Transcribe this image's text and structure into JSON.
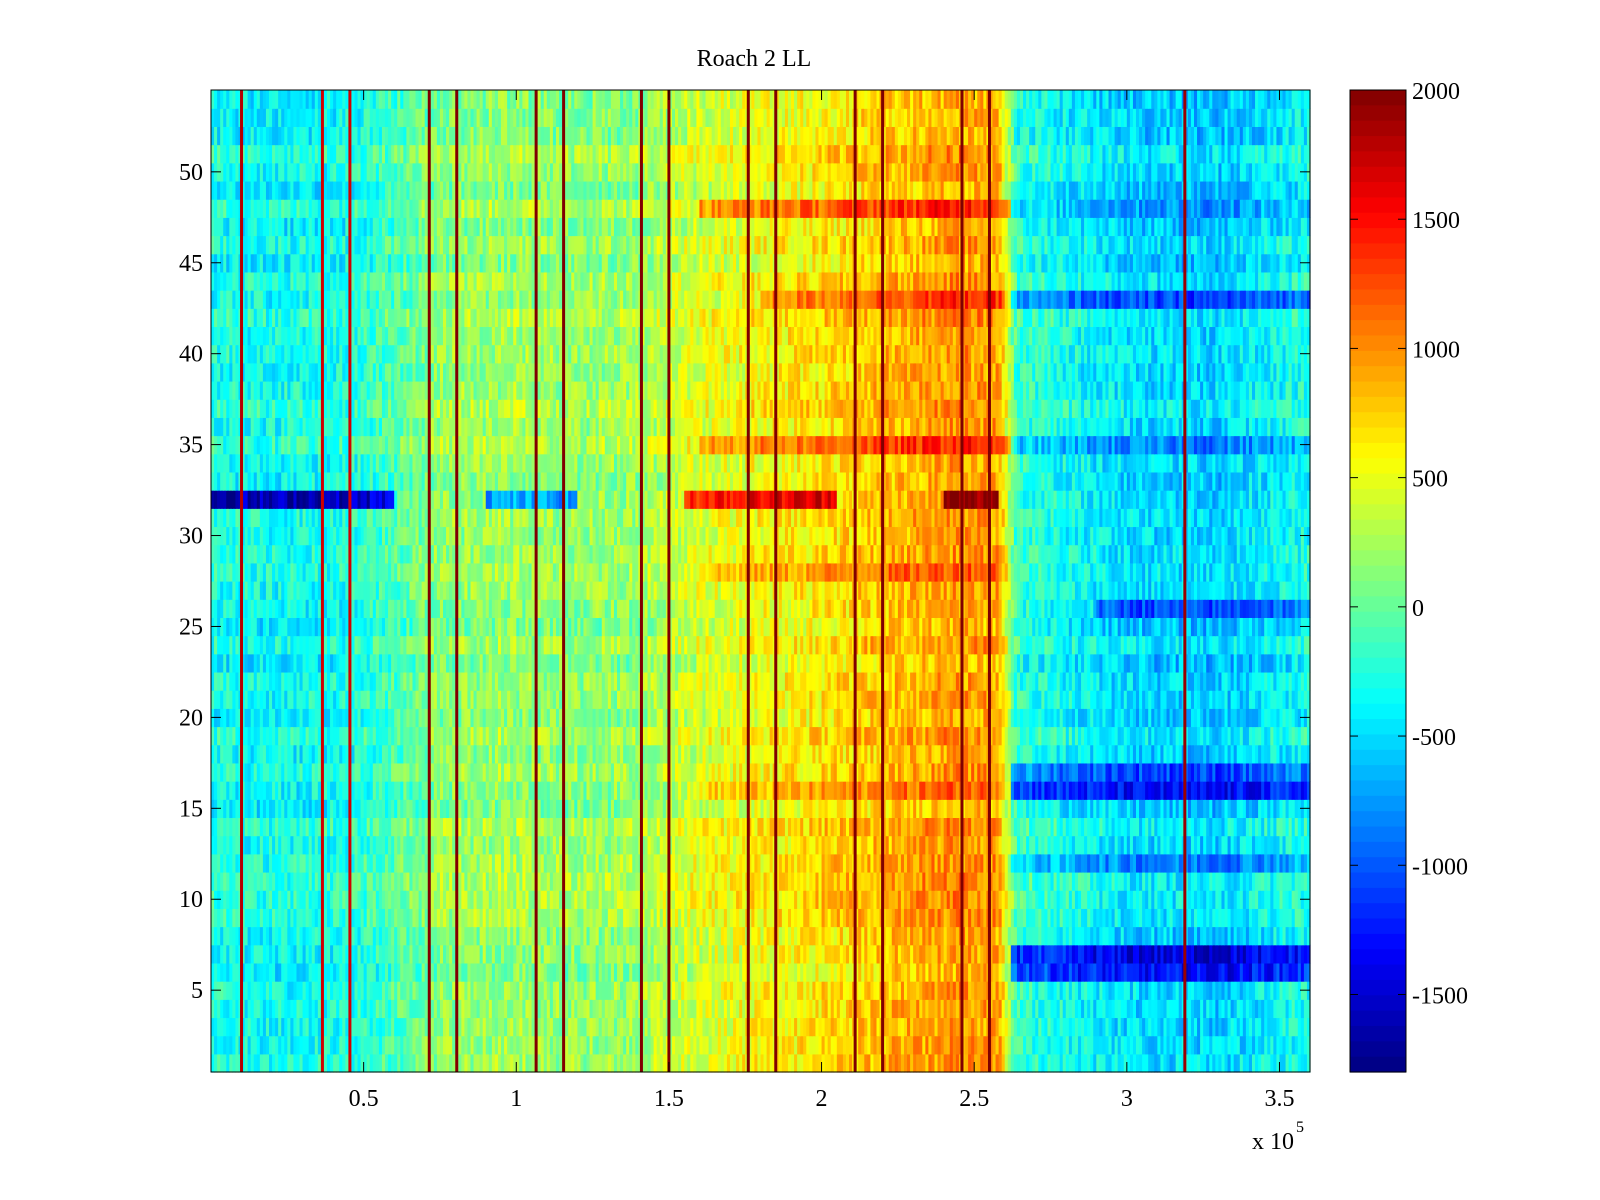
{
  "chart_data": {
    "type": "heatmap",
    "title": "Roach 2 LL",
    "xlabel": "",
    "ylabel": "",
    "x_exponent_label": {
      "base": "x 10",
      "exponent": "5"
    },
    "xlim": [
      0,
      360000
    ],
    "ylim": [
      0.5,
      54.5
    ],
    "rows": 54,
    "x_ticks": [
      {
        "value": 50000,
        "label": "0.5"
      },
      {
        "value": 100000,
        "label": "1"
      },
      {
        "value": 150000,
        "label": "1.5"
      },
      {
        "value": 200000,
        "label": "2"
      },
      {
        "value": 250000,
        "label": "2.5"
      },
      {
        "value": 300000,
        "label": "3"
      },
      {
        "value": 350000,
        "label": "3.5"
      }
    ],
    "y_ticks": [
      {
        "value": 5,
        "label": "5"
      },
      {
        "value": 10,
        "label": "10"
      },
      {
        "value": 15,
        "label": "15"
      },
      {
        "value": 20,
        "label": "20"
      },
      {
        "value": 25,
        "label": "25"
      },
      {
        "value": 30,
        "label": "30"
      },
      {
        "value": 35,
        "label": "35"
      },
      {
        "value": 40,
        "label": "40"
      },
      {
        "value": 45,
        "label": "45"
      },
      {
        "value": 50,
        "label": "50"
      }
    ],
    "colorbar": {
      "colormap": "jet",
      "clim": [
        -1800,
        2000
      ],
      "ticks": [
        {
          "value": 2000,
          "label": "2000"
        },
        {
          "value": 1500,
          "label": "1500"
        },
        {
          "value": 1000,
          "label": "1000"
        },
        {
          "value": 500,
          "label": "500"
        },
        {
          "value": 0,
          "label": "0"
        },
        {
          "value": -500,
          "label": "-500"
        },
        {
          "value": -1000,
          "label": "-1000"
        },
        {
          "value": -1500,
          "label": "-1500"
        }
      ]
    },
    "column_mean_profile": [
      {
        "x": 0,
        "value": -300
      },
      {
        "x": 20000,
        "value": -350
      },
      {
        "x": 45000,
        "value": -300
      },
      {
        "x": 60000,
        "value": -100
      },
      {
        "x": 75000,
        "value": 150
      },
      {
        "x": 100000,
        "value": 200
      },
      {
        "x": 120000,
        "value": 150
      },
      {
        "x": 140000,
        "value": 200
      },
      {
        "x": 155000,
        "value": 400
      },
      {
        "x": 180000,
        "value": 550
      },
      {
        "x": 200000,
        "value": 650
      },
      {
        "x": 220000,
        "value": 800
      },
      {
        "x": 245000,
        "value": 950
      },
      {
        "x": 258000,
        "value": 900
      },
      {
        "x": 264000,
        "value": -200
      },
      {
        "x": 300000,
        "value": -500
      },
      {
        "x": 330000,
        "value": -550
      },
      {
        "x": 360000,
        "value": -300
      }
    ],
    "row_offsets": [
      {
        "row": 7,
        "start_x": 262000,
        "value": -900
      },
      {
        "row": 6,
        "start_x": 262000,
        "value": -700
      },
      {
        "row": 16,
        "start_x": 262000,
        "value": -800
      },
      {
        "row": 17,
        "start_x": 262000,
        "value": -600
      },
      {
        "row": 12,
        "start_x": 262000,
        "value": -400
      },
      {
        "row": 35,
        "start_x": 262000,
        "value": -450
      },
      {
        "row": 43,
        "start_x": 262000,
        "value": -550
      },
      {
        "row": 48,
        "start_x": 262000,
        "value": -350
      },
      {
        "row": 26,
        "start_x": 290000,
        "value": -500
      },
      {
        "row": 43,
        "start_x": 180000,
        "end_x": 262000,
        "value": 450
      },
      {
        "row": 48,
        "start_x": 160000,
        "end_x": 262000,
        "value": 400
      },
      {
        "row": 35,
        "start_x": 160000,
        "end_x": 262000,
        "value": 350
      },
      {
        "row": 16,
        "start_x": 160000,
        "end_x": 262000,
        "value": 300
      },
      {
        "row": 28,
        "start_x": 160000,
        "end_x": 262000,
        "value": 250
      },
      {
        "row": 32,
        "start_x": 0,
        "end_x": 60000,
        "value": -1300
      },
      {
        "row": 32,
        "start_x": 90000,
        "end_x": 120000,
        "value": -900
      },
      {
        "row": 32,
        "start_x": 155000,
        "end_x": 205000,
        "value": 1000
      },
      {
        "row": 32,
        "start_x": 240000,
        "end_x": 258000,
        "value": 1000
      }
    ],
    "vertical_lines": [
      {
        "x": 10000,
        "value": 1800
      },
      {
        "x": 36500,
        "value": 1700
      },
      {
        "x": 45500,
        "value": 1700
      },
      {
        "x": 71500,
        "value": 2000
      },
      {
        "x": 80500,
        "value": 2000
      },
      {
        "x": 106500,
        "value": 2000
      },
      {
        "x": 115500,
        "value": 2000
      },
      {
        "x": 141000,
        "value": 2000
      },
      {
        "x": 150000,
        "value": 2000
      },
      {
        "x": 176000,
        "value": 2000
      },
      {
        "x": 185000,
        "value": 2000
      },
      {
        "x": 211000,
        "value": 2000
      },
      {
        "x": 220000,
        "value": 2000
      },
      {
        "x": 246000,
        "value": 2000
      },
      {
        "x": 255000,
        "value": 2000
      },
      {
        "x": 319000,
        "value": 1900
      }
    ]
  }
}
